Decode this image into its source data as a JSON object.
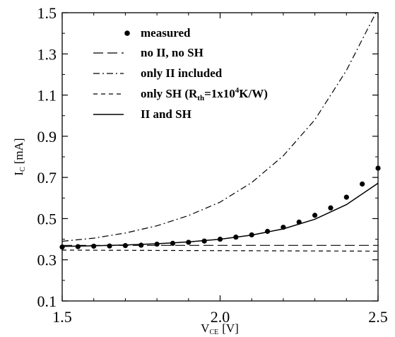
{
  "chart_data": {
    "type": "line",
    "xlabel": {
      "main": "V",
      "sub": "CE",
      "unit": "[V]"
    },
    "ylabel": {
      "main": "I",
      "sub": "C",
      "unit": "[mA]"
    },
    "xlim": [
      1.5,
      2.5
    ],
    "ylim": [
      0.1,
      1.5
    ],
    "xticks": [
      1.5,
      2.0,
      2.5
    ],
    "xtick_labels": [
      "1.5",
      "2.0",
      "2.5"
    ],
    "yticks": [
      0.1,
      0.3,
      0.5,
      0.7,
      0.9,
      1.1,
      1.3,
      1.5
    ],
    "ytick_labels": [
      "0.1",
      "0.3",
      "0.5",
      "0.7",
      "0.9",
      "1.1",
      "1.3",
      "1.5"
    ],
    "grid": false,
    "legend_position": "top-center",
    "series": [
      {
        "name": "measured",
        "style": "markers",
        "x": [
          1.5,
          1.55,
          1.6,
          1.65,
          1.7,
          1.75,
          1.8,
          1.85,
          1.9,
          1.95,
          2.0,
          2.05,
          2.1,
          2.15,
          2.2,
          2.25,
          2.3,
          2.35,
          2.4,
          2.45,
          2.5
        ],
        "y": [
          0.362,
          0.364,
          0.366,
          0.367,
          0.369,
          0.371,
          0.376,
          0.38,
          0.385,
          0.391,
          0.4,
          0.41,
          0.421,
          0.438,
          0.458,
          0.483,
          0.516,
          0.552,
          0.604,
          0.668,
          0.745
        ]
      },
      {
        "name": "no II, no SH",
        "style": "longdash",
        "x": [
          1.5,
          2.5
        ],
        "y": [
          0.37,
          0.37
        ]
      },
      {
        "name": "only II included",
        "style": "dashdot",
        "x": [
          1.5,
          1.6,
          1.7,
          1.8,
          1.9,
          2.0,
          2.1,
          2.2,
          2.3,
          2.4,
          2.5
        ],
        "y": [
          0.39,
          0.405,
          0.43,
          0.465,
          0.515,
          0.58,
          0.675,
          0.805,
          0.98,
          1.22,
          1.52
        ]
      },
      {
        "name_parts": [
          "only SH (R",
          "th",
          "=1x10",
          "4",
          "K/W)"
        ],
        "style": "shortdash",
        "x": [
          1.5,
          2.5
        ],
        "y": [
          0.347,
          0.342
        ]
      },
      {
        "name": "II and SH",
        "style": "solid",
        "x": [
          1.5,
          1.6,
          1.7,
          1.8,
          1.9,
          2.0,
          2.1,
          2.2,
          2.3,
          2.4,
          2.5
        ],
        "y": [
          0.365,
          0.368,
          0.372,
          0.378,
          0.387,
          0.4,
          0.42,
          0.45,
          0.497,
          0.568,
          0.672
        ]
      }
    ]
  }
}
